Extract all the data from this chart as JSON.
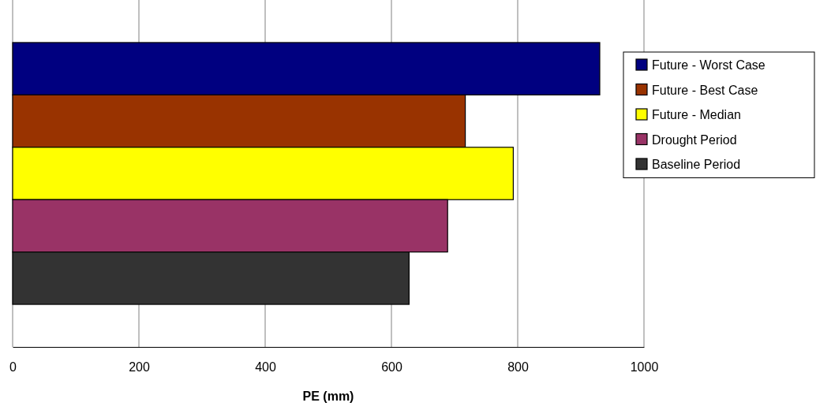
{
  "chart_data": {
    "type": "bar",
    "orientation": "horizontal",
    "xlabel": "PE (mm)",
    "categories": [
      null
    ],
    "series": [
      {
        "name": "Future - Worst Case",
        "color": "#000080",
        "values": [
          930
        ]
      },
      {
        "name": "Future - Best Case",
        "color": "#993300",
        "values": [
          717
        ]
      },
      {
        "name": "Future - Median",
        "color": "#ffff00",
        "values": [
          793
        ]
      },
      {
        "name": "Drought Period",
        "color": "#993366",
        "values": [
          689
        ]
      },
      {
        "name": "Baseline Period",
        "color": "#333333",
        "values": [
          628
        ]
      }
    ],
    "xlim": [
      0,
      1000
    ],
    "xticks": [
      0,
      200,
      400,
      600,
      800,
      1000
    ],
    "grid": "x",
    "legend": "right"
  }
}
